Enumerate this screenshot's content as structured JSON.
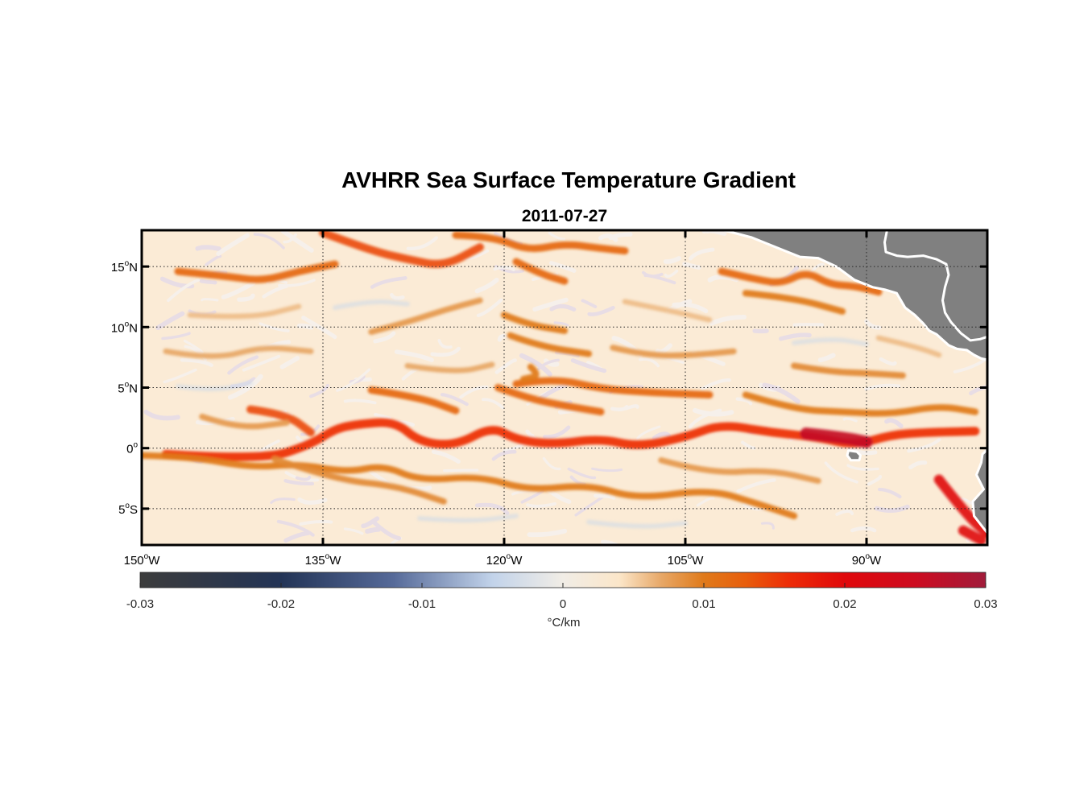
{
  "chart_data": {
    "type": "heatmap",
    "title": "AVHRR Sea Surface Temperature Gradient",
    "subtitle": "2011-07-27",
    "map": {
      "projection": "equirectangular",
      "lon_range": [
        -150,
        -80
      ],
      "lat_range": [
        -8,
        18
      ],
      "grid": "dotted",
      "land_color": "#808080",
      "coastline_color": "#ffffff"
    },
    "x_ticks": [
      {
        "value": -150,
        "deg": "150",
        "suffix": "W"
      },
      {
        "value": -135,
        "deg": "135",
        "suffix": "W"
      },
      {
        "value": -120,
        "deg": "120",
        "suffix": "W"
      },
      {
        "value": -105,
        "deg": "105",
        "suffix": "W"
      },
      {
        "value": -90,
        "deg": "90",
        "suffix": "W"
      }
    ],
    "y_ticks": [
      {
        "value": 15,
        "deg": "15",
        "suffix": "N"
      },
      {
        "value": 10,
        "deg": "10",
        "suffix": "N"
      },
      {
        "value": 5,
        "deg": "5",
        "suffix": "N"
      },
      {
        "value": 0,
        "deg": "0",
        "suffix": ""
      },
      {
        "value": -5,
        "deg": "5",
        "suffix": "S"
      }
    ],
    "colorbar": {
      "label": "°C/km",
      "range": [
        -0.03,
        0.03
      ],
      "ticks": [
        {
          "value": -0.03,
          "label": "-0.03"
        },
        {
          "value": -0.02,
          "label": "-0.02"
        },
        {
          "value": -0.01,
          "label": "-0.01"
        },
        {
          "value": 0,
          "label": "0"
        },
        {
          "value": 0.01,
          "label": "0.01"
        },
        {
          "value": 0.02,
          "label": "0.02"
        },
        {
          "value": 0.03,
          "label": "0.03"
        }
      ],
      "colors": [
        {
          "value": -0.03,
          "color": "#3c3c3c"
        },
        {
          "value": -0.02,
          "color": "#233456"
        },
        {
          "value": -0.012,
          "color": "#566a99"
        },
        {
          "value": -0.005,
          "color": "#c2d3ea"
        },
        {
          "value": 0,
          "color": "#f1ede6"
        },
        {
          "value": 0.004,
          "color": "#fbe6c9"
        },
        {
          "value": 0.007,
          "color": "#e7a766"
        },
        {
          "value": 0.01,
          "color": "#e07a1a"
        },
        {
          "value": 0.013,
          "color": "#e85d0c"
        },
        {
          "value": 0.016,
          "color": "#ed2c07"
        },
        {
          "value": 0.02,
          "color": "#e0080b"
        },
        {
          "value": 0.025,
          "color": "#cd0b20"
        },
        {
          "value": 0.03,
          "color": "#a11c3b"
        }
      ]
    },
    "fronts": [
      {
        "value": 0.016,
        "points": [
          [
            -148,
            -0.5
          ],
          [
            -140,
            -1.0
          ],
          [
            -136,
            0.3
          ],
          [
            -134,
            1.6
          ],
          [
            -132,
            2.0
          ],
          [
            -129,
            2.2
          ],
          [
            -127,
            0.5
          ],
          [
            -124,
            0.2
          ],
          [
            -121,
            1.8
          ],
          [
            -119,
            0.7
          ],
          [
            -116,
            0.3
          ],
          [
            -112,
            0.8
          ],
          [
            -109,
            0.1
          ],
          [
            -105,
            0.9
          ],
          [
            -102,
            2.0
          ],
          [
            -98,
            1.3
          ],
          [
            -94,
            0.9
          ],
          [
            -91,
            0.2
          ],
          [
            -88,
            1.1
          ],
          [
            -85,
            1.3
          ],
          [
            -81,
            1.4
          ]
        ]
      },
      {
        "value": 0.026,
        "points": [
          [
            -95,
            1.2
          ],
          [
            -92,
            0.9
          ],
          [
            -90,
            0.5
          ]
        ]
      },
      {
        "value": 0.014,
        "points": [
          [
            -141,
            3.2
          ],
          [
            -138,
            2.8
          ],
          [
            -136,
            1.3
          ]
        ]
      },
      {
        "value": 0.012,
        "points": [
          [
            -131,
            4.8
          ],
          [
            -127,
            4.2
          ],
          [
            -124,
            3.1
          ]
        ]
      },
      {
        "value": 0.012,
        "points": [
          [
            -119,
            5.3
          ],
          [
            -116,
            5.8
          ],
          [
            -112,
            4.9
          ],
          [
            -108,
            4.6
          ],
          [
            -103,
            4.4
          ]
        ]
      },
      {
        "value": 0.012,
        "points": [
          [
            -120.5,
            5.0
          ],
          [
            -118,
            4.1
          ],
          [
            -115,
            3.5
          ],
          [
            -112,
            3.0
          ]
        ]
      },
      {
        "value": 0.01,
        "points": [
          [
            -117.8,
            6.7
          ],
          [
            -117,
            6.0
          ],
          [
            -118.4,
            5.7
          ]
        ]
      },
      {
        "value": 0.01,
        "points": [
          [
            -100,
            4.4
          ],
          [
            -96,
            3.2
          ],
          [
            -92,
            3.0
          ],
          [
            -88,
            2.8
          ],
          [
            -84,
            3.5
          ],
          [
            -81,
            3.0
          ]
        ]
      },
      {
        "value": 0.012,
        "points": [
          [
            -147,
            14.6
          ],
          [
            -143,
            14.2
          ],
          [
            -140,
            13.8
          ],
          [
            -137,
            14.6
          ],
          [
            -134,
            15.2
          ]
        ]
      },
      {
        "value": 0.014,
        "points": [
          [
            -135,
            17.8
          ],
          [
            -131,
            16.3
          ],
          [
            -128,
            15.6
          ],
          [
            -125,
            15.0
          ],
          [
            -122,
            16.6
          ]
        ]
      },
      {
        "value": 0.012,
        "points": [
          [
            -124,
            17.6
          ],
          [
            -121,
            17.5
          ],
          [
            -118,
            16.3
          ],
          [
            -115,
            16.9
          ],
          [
            -112,
            16.5
          ],
          [
            -110,
            16.3
          ]
        ]
      },
      {
        "value": 0.012,
        "points": [
          [
            -119,
            15.4
          ],
          [
            -117,
            14.4
          ],
          [
            -115,
            13.8
          ]
        ]
      },
      {
        "value": 0.01,
        "points": [
          [
            -120,
            11.0
          ],
          [
            -118,
            10.2
          ],
          [
            -115,
            9.7
          ]
        ]
      },
      {
        "value": 0.01,
        "points": [
          [
            -119.5,
            9.3
          ],
          [
            -117,
            8.4
          ],
          [
            -113,
            7.8
          ]
        ]
      },
      {
        "value": 0.012,
        "points": [
          [
            -102,
            14.6
          ],
          [
            -99,
            13.9
          ],
          [
            -97,
            13.6
          ],
          [
            -95,
            14.6
          ],
          [
            -93,
            13.5
          ],
          [
            -91,
            13.4
          ],
          [
            -89,
            12.9
          ]
        ]
      },
      {
        "value": 0.01,
        "points": [
          [
            -100,
            12.8
          ],
          [
            -96,
            12.4
          ],
          [
            -92,
            11.3
          ]
        ]
      },
      {
        "value": 0.009,
        "points": [
          [
            -96,
            6.8
          ],
          [
            -93,
            6.3
          ],
          [
            -90,
            6.2
          ],
          [
            -87,
            6.0
          ]
        ]
      },
      {
        "value": 0.02,
        "points": [
          [
            -84,
            -2.6
          ],
          [
            -82.5,
            -4.5
          ],
          [
            -81,
            -6.2
          ],
          [
            -80,
            -7.0
          ]
        ]
      },
      {
        "value": 0.02,
        "points": [
          [
            -82,
            -6.8
          ],
          [
            -80.5,
            -7.6
          ]
        ]
      },
      {
        "value": 0.01,
        "points": [
          [
            -150,
            -0.6
          ],
          [
            -146,
            -0.7
          ],
          [
            -141,
            -1.6
          ],
          [
            -137,
            -1.3
          ],
          [
            -133,
            -2.0
          ],
          [
            -130,
            -1.4
          ],
          [
            -127,
            -2.7
          ],
          [
            -122,
            -2.3
          ],
          [
            -118,
            -3.5
          ],
          [
            -113,
            -3.0
          ],
          [
            -109,
            -4.2
          ],
          [
            -103,
            -3.4
          ],
          [
            -99,
            -4.6
          ],
          [
            -96,
            -5.6
          ]
        ]
      },
      {
        "value": 0.009,
        "points": [
          [
            -139,
            -0.9
          ],
          [
            -134,
            -2.6
          ],
          [
            -129,
            -3.1
          ],
          [
            -125,
            -4.4
          ]
        ]
      },
      {
        "value": 0.008,
        "points": [
          [
            -107,
            -1.0
          ],
          [
            -103,
            -2.1
          ],
          [
            -98,
            -1.8
          ],
          [
            -94,
            -2.7
          ]
        ]
      },
      {
        "value": 0.008,
        "points": [
          [
            -131,
            9.6
          ],
          [
            -128,
            10.4
          ],
          [
            -125,
            11.4
          ],
          [
            -122,
            12.2
          ]
        ]
      },
      {
        "value": 0.008,
        "points": [
          [
            -111,
            8.3
          ],
          [
            -108,
            7.6
          ],
          [
            -104,
            7.7
          ],
          [
            -101,
            8.0
          ]
        ]
      },
      {
        "value": 0.007,
        "points": [
          [
            -148,
            8.0
          ],
          [
            -144,
            7.3
          ],
          [
            -140,
            8.4
          ],
          [
            -136,
            8.0
          ]
        ]
      },
      {
        "value": 0.008,
        "points": [
          [
            -145,
            2.6
          ],
          [
            -142,
            1.6
          ],
          [
            -138,
            2.1
          ]
        ]
      },
      {
        "value": 0.007,
        "points": [
          [
            -128,
            6.8
          ],
          [
            -124,
            6.2
          ],
          [
            -121,
            6.9
          ]
        ]
      },
      {
        "value": 0.006,
        "points": [
          [
            -146,
            11.0
          ],
          [
            -141,
            10.7
          ],
          [
            -137,
            11.7
          ]
        ]
      },
      {
        "value": 0.006,
        "points": [
          [
            -110,
            12.1
          ],
          [
            -106,
            11.3
          ],
          [
            -103,
            10.6
          ]
        ]
      },
      {
        "value": 0.006,
        "points": [
          [
            -89,
            9.1
          ],
          [
            -86,
            8.4
          ],
          [
            -84,
            7.7
          ]
        ]
      },
      {
        "value": -0.004,
        "points": [
          [
            -147,
            5.1
          ],
          [
            -144,
            4.7
          ],
          [
            -141,
            5.4
          ]
        ]
      },
      {
        "value": -0.004,
        "points": [
          [
            -134,
            11.6
          ],
          [
            -131,
            12.2
          ],
          [
            -128,
            11.9
          ]
        ]
      },
      {
        "value": -0.004,
        "points": [
          [
            -113,
            -6.1
          ],
          [
            -109,
            -6.6
          ],
          [
            -105,
            -6.2
          ]
        ]
      },
      {
        "value": -0.004,
        "points": [
          [
            -127,
            -5.8
          ],
          [
            -123,
            -6.1
          ],
          [
            -119,
            -5.6
          ]
        ]
      },
      {
        "value": -0.004,
        "points": [
          [
            -96,
            8.7
          ],
          [
            -93,
            9.1
          ],
          [
            -90,
            8.6
          ]
        ]
      }
    ],
    "land": [
      {
        "name": "central-america",
        "points": [
          [
            -101.8,
            18
          ],
          [
            -99.5,
            17.4
          ],
          [
            -97,
            16.4
          ],
          [
            -95.5,
            15.8
          ],
          [
            -94,
            15.7
          ],
          [
            -92.5,
            15.0
          ],
          [
            -91,
            13.9
          ],
          [
            -89.5,
            13.3
          ],
          [
            -88.5,
            13.1
          ],
          [
            -87.5,
            12.8
          ],
          [
            -86.8,
            11.6
          ],
          [
            -86,
            11.0
          ],
          [
            -85.3,
            10.3
          ],
          [
            -84.8,
            9.7
          ],
          [
            -84.2,
            9.4
          ],
          [
            -83.2,
            8.5
          ],
          [
            -82.5,
            8.2
          ],
          [
            -81.7,
            8.1
          ],
          [
            -81.1,
            7.7
          ],
          [
            -80.5,
            7.4
          ],
          [
            -80,
            7.3
          ],
          [
            -80,
            18
          ]
        ]
      },
      {
        "name": "caribbean-land",
        "points": [
          [
            -88.3,
            18
          ],
          [
            -88.5,
            17
          ],
          [
            -88.4,
            16.2
          ],
          [
            -87.5,
            15.9
          ],
          [
            -86.6,
            15.8
          ],
          [
            -85.3,
            15.9
          ],
          [
            -84.2,
            15.6
          ],
          [
            -83.4,
            15.2
          ],
          [
            -83.2,
            14.3
          ],
          [
            -83.5,
            13.3
          ],
          [
            -83.7,
            12.2
          ],
          [
            -83.5,
            11.2
          ],
          [
            -83,
            10.4
          ],
          [
            -82.2,
            9.5
          ],
          [
            -81.4,
            8.9
          ],
          [
            -80.6,
            9.0
          ],
          [
            -80,
            9.2
          ],
          [
            -80,
            7.3
          ],
          [
            -80.5,
            7.4
          ],
          [
            -81.1,
            7.7
          ],
          [
            -81.7,
            8.1
          ],
          [
            -82.5,
            8.2
          ],
          [
            -83.2,
            8.5
          ],
          [
            -84.2,
            9.4
          ],
          [
            -84.8,
            9.7
          ],
          [
            -85.3,
            10.3
          ],
          [
            -86,
            11
          ],
          [
            -86.8,
            11.6
          ],
          [
            -87.5,
            12.8
          ],
          [
            -88.5,
            13.1
          ],
          [
            -89.5,
            13.3
          ],
          [
            -91,
            13.9
          ],
          [
            -92.5,
            15.0
          ],
          [
            -94,
            15.7
          ],
          [
            -95.5,
            15.8
          ],
          [
            -97,
            16.4
          ],
          [
            -99.5,
            17.4
          ],
          [
            -101.8,
            18
          ]
        ]
      },
      {
        "name": "south-america",
        "points": [
          [
            -80,
            -0.1
          ],
          [
            -80.4,
            -0.5
          ],
          [
            -80.5,
            -1.2
          ],
          [
            -80.9,
            -2.2
          ],
          [
            -80.3,
            -3.4
          ],
          [
            -81.2,
            -4.4
          ],
          [
            -81.1,
            -5.6
          ],
          [
            -80.4,
            -6.5
          ],
          [
            -80,
            -7.0
          ]
        ]
      },
      {
        "name": "galapagos",
        "points": [
          [
            -91.5,
            -0.2
          ],
          [
            -90.8,
            -0.3
          ],
          [
            -90.5,
            -0.6
          ],
          [
            -90.6,
            -1.0
          ],
          [
            -91.3,
            -1.0
          ],
          [
            -91.6,
            -0.6
          ]
        ]
      }
    ]
  }
}
